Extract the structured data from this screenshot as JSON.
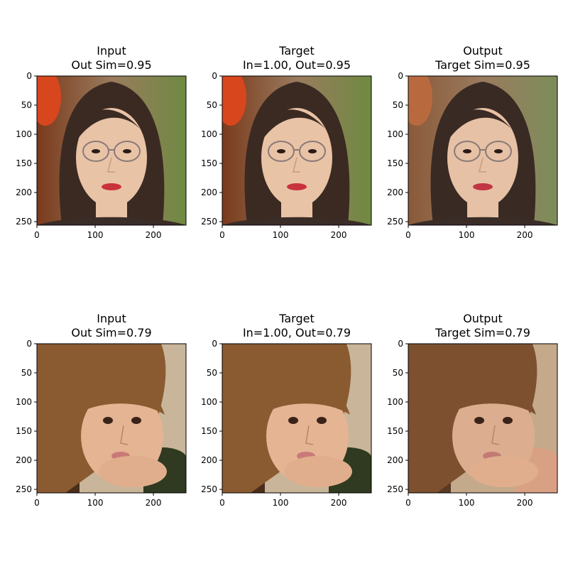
{
  "figure": {
    "background": "#ffffff",
    "axis_color": "#000000"
  },
  "chart_data": [
    {
      "type": "image",
      "title_line1": "Input",
      "title_line2": "Out Sim=0.95",
      "xticks": [
        0,
        100,
        200
      ],
      "yticks": [
        0,
        50,
        100,
        150,
        200,
        250
      ],
      "xlim": [
        0,
        256
      ],
      "ylim": [
        256,
        0
      ],
      "image": "face-woman-glasses",
      "palette": {
        "bg_left": "#7a3a1c",
        "bg_right": "#6f8a42",
        "hair": "#3b2a22",
        "skin": "#e9c3a6",
        "lips": "#c8323c",
        "accent": "#d8461e"
      }
    },
    {
      "type": "image",
      "title_line1": "Target",
      "title_line2": "In=1.00, Out=0.95",
      "xticks": [
        0,
        100,
        200
      ],
      "yticks": [
        0,
        50,
        100,
        150,
        200,
        250
      ],
      "xlim": [
        0,
        256
      ],
      "ylim": [
        256,
        0
      ],
      "image": "face-woman-glasses",
      "palette": {
        "bg_left": "#7a3a1c",
        "bg_right": "#6f8a42",
        "hair": "#3b2a22",
        "skin": "#e9c3a6",
        "lips": "#c8323c",
        "accent": "#d8461e"
      }
    },
    {
      "type": "image",
      "title_line1": "Output",
      "title_line2": "Target Sim=0.95",
      "xticks": [
        0,
        100,
        200
      ],
      "yticks": [
        0,
        50,
        100,
        150,
        200,
        250
      ],
      "xlim": [
        0,
        256
      ],
      "ylim": [
        256,
        0
      ],
      "image": "face-woman-glasses-generated",
      "palette": {
        "bg_left": "#8a5a3a",
        "bg_right": "#7d8d5a",
        "hair": "#3a2a24",
        "skin": "#e6c1a5",
        "lips": "#c03642",
        "accent": "#b86a3e"
      }
    },
    {
      "type": "image",
      "title_line1": "Input",
      "title_line2": "Out Sim=0.79",
      "xticks": [
        0,
        100,
        200
      ],
      "yticks": [
        0,
        50,
        100,
        150,
        200,
        250
      ],
      "xlim": [
        0,
        256
      ],
      "ylim": [
        256,
        0
      ],
      "image": "face-child-hand",
      "palette": {
        "bg_left": "#4a2e1c",
        "bg_right": "#c9b59a",
        "hair": "#8a5a30",
        "skin": "#e4b493",
        "lips": "#c97a78",
        "accent": "#2f3a20"
      }
    },
    {
      "type": "image",
      "title_line1": "Target",
      "title_line2": "In=1.00, Out=0.79",
      "xticks": [
        0,
        100,
        200
      ],
      "yticks": [
        0,
        50,
        100,
        150,
        200,
        250
      ],
      "xlim": [
        0,
        256
      ],
      "ylim": [
        256,
        0
      ],
      "image": "face-child-hand",
      "palette": {
        "bg_left": "#4a2e1c",
        "bg_right": "#c9b59a",
        "hair": "#8a5a30",
        "skin": "#e4b493",
        "lips": "#c97a78",
        "accent": "#2f3a20"
      }
    },
    {
      "type": "image",
      "title_line1": "Output",
      "title_line2": "Target Sim=0.79",
      "xticks": [
        0,
        100,
        200
      ],
      "yticks": [
        0,
        50,
        100,
        150,
        200,
        250
      ],
      "xlim": [
        0,
        256
      ],
      "ylim": [
        256,
        0
      ],
      "image": "face-child-generated",
      "palette": {
        "bg_left": "#5a3a24",
        "bg_right": "#c4aa8a",
        "hair": "#7d5130",
        "skin": "#dcae8f",
        "lips": "#c27a74",
        "accent": "#d9a184"
      }
    }
  ]
}
